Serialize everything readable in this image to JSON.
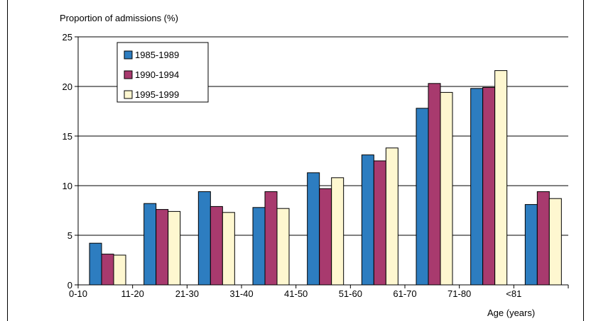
{
  "chart_data": {
    "type": "bar",
    "title": "",
    "ylabel": "Proportion of admissions (%)",
    "xlabel": "Age (years)",
    "ylim": [
      0,
      25
    ],
    "yticks": [
      0,
      5,
      10,
      15,
      20,
      25
    ],
    "grid": true,
    "legend_position": "top-left",
    "tick_labels": [
      "0-10",
      "11-20",
      "21-30",
      "31-40",
      "41-50",
      "51-60",
      "61-70",
      "71-80",
      "<81"
    ],
    "categories": [
      "0-10",
      "11-20",
      "21-30",
      "31-40",
      "41-50",
      "51-60",
      "61-70",
      "71-80",
      "<81"
    ],
    "series": [
      {
        "name": "1985-1989",
        "color": "#2D7DC0",
        "values": [
          4.2,
          8.2,
          9.4,
          7.8,
          11.3,
          13.1,
          17.8,
          19.8,
          8.1
        ]
      },
      {
        "name": "1990-1994",
        "color": "#A83A6E",
        "values": [
          3.1,
          7.6,
          7.9,
          9.4,
          9.7,
          12.5,
          20.3,
          19.9,
          9.4
        ]
      },
      {
        "name": "1995-1999",
        "color": "#FEF7D0",
        "values": [
          3.0,
          7.4,
          7.3,
          7.7,
          10.8,
          13.8,
          19.4,
          21.6,
          8.7
        ]
      }
    ]
  }
}
